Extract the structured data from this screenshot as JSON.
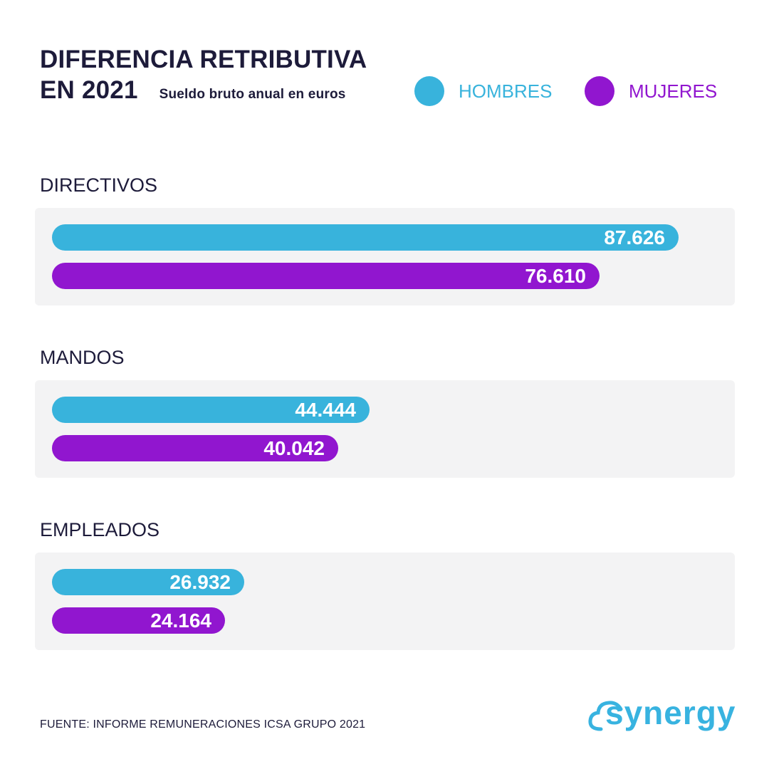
{
  "title": {
    "line1": "DIFERENCIA RETRIBUTIVA",
    "line2": "EN 2021",
    "subtitle": "Sueldo bruto anual en euros"
  },
  "legend": [
    {
      "label": "HOMBRES",
      "color": "#38b3dc"
    },
    {
      "label": "MUJERES",
      "color": "#9116cf"
    }
  ],
  "chart_data": {
    "type": "bar",
    "orientation": "horizontal",
    "title": "DIFERENCIA RETRIBUTIVA EN 2021",
    "subtitle": "Sueldo bruto anual en euros",
    "categories": [
      "DIRECTIVOS",
      "MANDOS",
      "EMPLEADOS"
    ],
    "series": [
      {
        "name": "HOMBRES",
        "color": "#38b3dc",
        "values": [
          87626,
          44444,
          26932
        ],
        "labels": [
          "87.626",
          "44.444",
          "26.932"
        ]
      },
      {
        "name": "MUJERES",
        "color": "#9116cf",
        "values": [
          76610,
          40042,
          24164
        ],
        "labels": [
          "76.610",
          "40.042",
          "24.164"
        ]
      }
    ],
    "legend_position": "top-right",
    "grid": false
  },
  "source": "FUENTE: INFORME REMUNERACIONES ICSA GRUPO 2021",
  "logo": {
    "text": "synergy",
    "icon": "cloud-icon"
  }
}
